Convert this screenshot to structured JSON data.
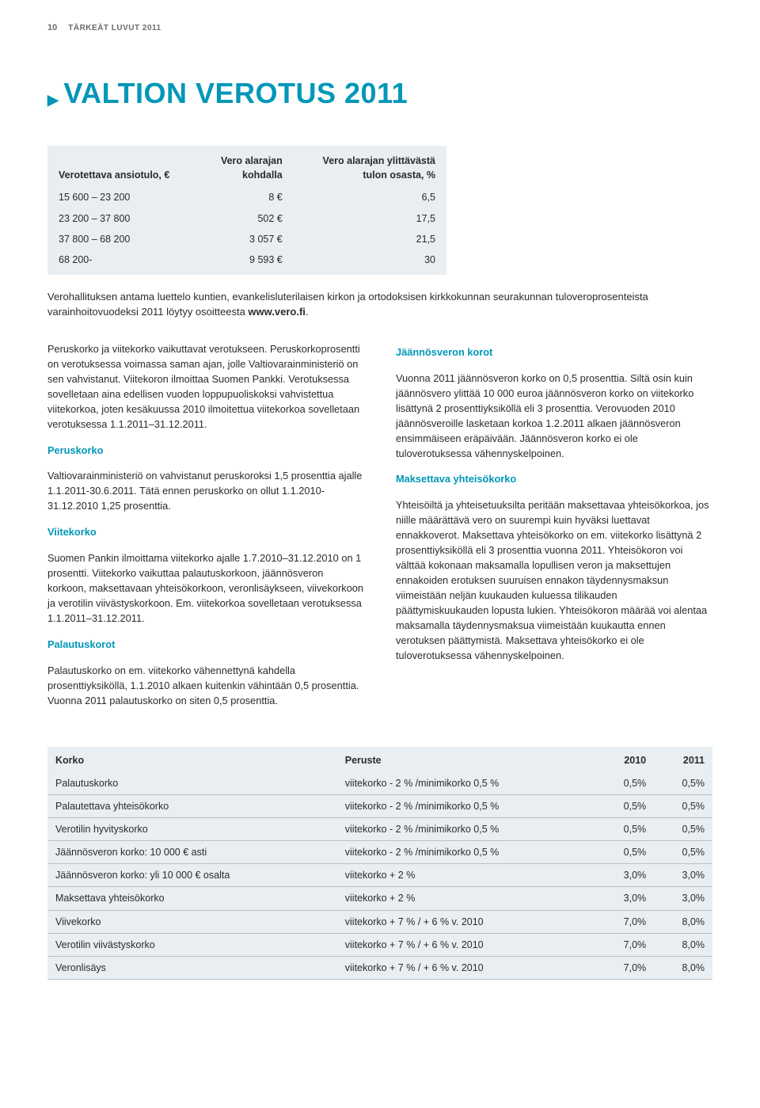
{
  "header": {
    "page_num": "10",
    "label": "TÄRKEÄT LUVUT 2011"
  },
  "title": "VALTION VEROTUS 2011",
  "tax_brackets": {
    "headers": {
      "col1": "Verotettava ansiotulo, €",
      "col2_l1": "Vero alarajan",
      "col2_l2": "kohdalla",
      "col3_l1": "Vero alarajan ylittävästä",
      "col3_l2": "tulon osasta, %"
    },
    "rows": [
      {
        "range": "15 600 – 23 200",
        "base": "8 €",
        "pct": "6,5"
      },
      {
        "range": "23 200 – 37 800",
        "base": "502 €",
        "pct": "17,5"
      },
      {
        "range": "37 800 – 68 200",
        "base": "3 057 €",
        "pct": "21,5"
      },
      {
        "range": "68 200-",
        "base": "9 593 €",
        "pct": "30"
      }
    ]
  },
  "intro": {
    "pre": "Verohallituksen antama luettelo kuntien, evankelisluterilaisen kirkon ja ortodoksisen kirkkokunnan seurakunnan tuloveroprosenteista varainhoitovuodeksi 2011 löytyy osoitteesta ",
    "url": "www.vero.fi"
  },
  "left": {
    "p1": "Peruskorko ja viitekorko vaikuttavat verotukseen. Peruskorkoprosentti on verotuksessa voimassa saman ajan, jolle Valtiovarainministeriö on sen vahvistanut. Viitekoron ilmoittaa Suomen Pankki. Verotuksessa sovelletaan aina edellisen vuoden loppupuoliskoksi vahvistettua viitekorkoa, joten kesäkuussa 2010 ilmoitettua viitekorkoa sovelletaan verotuksessa 1.1.2011–31.12.2011.",
    "h2": "Peruskorko",
    "p2": "Valtiovarainministeriö on vahvistanut peruskoroksi 1,5 prosenttia ajalle 1.1.2011-30.6.2011. Tätä ennen peruskorko on ollut 1.1.2010-31.12.2010 1,25 prosenttia.",
    "h3": "Viitekorko",
    "p3": "Suomen Pankin ilmoittama viitekorko ajalle 1.7.2010–31.12.2010 on 1 prosentti. Viitekorko vaikuttaa palautuskorkoon, jäännösveron korkoon, maksettavaan yhteisökorkoon, veronlisäykseen, viivekorkoon ja verotilin viivästyskorkoon. Em. viitekorkoa sovelletaan verotuksessa 1.1.2011–31.12.2011.",
    "h4": "Palautuskorot",
    "p4": "Palautuskorko on em. viitekorko vähennettynä kahdella prosenttiyksiköllä, 1.1.2010 alkaen kuitenkin vähintään 0,5 prosenttia. Vuonna 2011 palautuskorko on siten 0,5 prosenttia."
  },
  "right": {
    "h1": "Jäännösveron korot",
    "p1": "Vuonna 2011 jäännösveron korko on 0,5 prosenttia. Siltä osin kuin jäännösvero ylittää 10 000 euroa jäännösveron korko on viitekorko lisättynä 2 prosenttiyksiköllä eli 3 prosenttia. Verovuoden 2010 jäännösveroille lasketaan korkoa 1.2.2011 alkaen jäännösveron ensimmäiseen eräpäivään. Jäännösveron korko ei ole tuloverotuksessa vähennyskelpoinen.",
    "h2": "Maksettava yhteisökorko",
    "p2": "Yhteisöiltä ja yhteisetuuksilta peritään maksettavaa yhteisökorkoa, jos niille määrättävä vero on suurempi kuin hyväksi luettavat ennakkoverot. Maksettava yhteisökorko on em. viitekorko lisättynä 2 prosenttiyksiköllä eli 3 prosenttia vuonna 2011. Yhteisökoron voi välttää kokonaan maksamalla lopullisen veron ja maksettujen ennakoiden erotuksen suuruisen ennakon täydennysmaksun viimeistään neljän kuukauden kuluessa tilikauden päättymiskuukauden lopusta lukien. Yhteisökoron määrää voi alentaa maksamalla täydennysmaksua viimeistään kuukautta ennen verotuksen päättymistä. Maksettava yhteisökorko ei ole tuloverotuksessa vähennyskelpoinen."
  },
  "rates": {
    "headers": {
      "c1": "Korko",
      "c2": "Peruste",
      "c3": "2010",
      "c4": "2011"
    },
    "rows": [
      {
        "n": "Palautuskorko",
        "b": "viitekorko - 2 % /minimikorko 0,5 %",
        "v10": "0,5%",
        "v11": "0,5%"
      },
      {
        "n": "Palautettava yhteisökorko",
        "b": "viitekorko - 2 % /minimikorko 0,5 %",
        "v10": "0,5%",
        "v11": "0,5%"
      },
      {
        "n": "Verotilin hyvityskorko",
        "b": "viitekorko - 2 % /minimikorko 0,5 %",
        "v10": "0,5%",
        "v11": "0,5%"
      },
      {
        "n": "Jäännösveron korko: 10 000 € asti",
        "b": "viitekorko - 2 % /minimikorko 0,5 %",
        "v10": "0,5%",
        "v11": "0,5%"
      },
      {
        "n": "Jäännösveron korko: yli 10 000 € osalta",
        "b": "viitekorko + 2 %",
        "v10": "3,0%",
        "v11": "3,0%"
      },
      {
        "n": "Maksettava yhteisökorko",
        "b": "viitekorko + 2 %",
        "v10": "3,0%",
        "v11": "3,0%"
      },
      {
        "n": "Viivekorko",
        "b": "viitekorko + 7 % / + 6 % v. 2010",
        "v10": "7,0%",
        "v11": "8,0%"
      },
      {
        "n": "Verotilin viivästyskorko",
        "b": "viitekorko + 7 % / + 6 % v. 2010",
        "v10": "7,0%",
        "v11": "8,0%"
      },
      {
        "n": "Veronlisäys",
        "b": "viitekorko + 7 % / + 6 % v. 2010",
        "v10": "7,0%",
        "v11": "8,0%"
      }
    ]
  }
}
